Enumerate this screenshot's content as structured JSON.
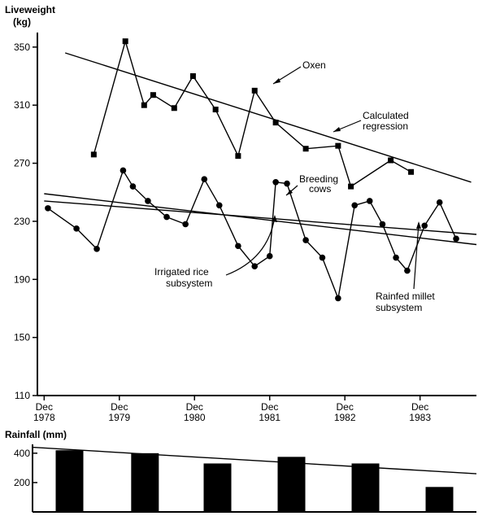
{
  "chart_data": [
    {
      "type": "line",
      "ylabel": "Liveweight",
      "yunit": "(kg)",
      "ylim": [
        110,
        360
      ],
      "yticks": [
        "110",
        "150",
        "190",
        "230",
        "270",
        "310",
        "350"
      ],
      "xticks": [
        {
          "label": "Dec",
          "year": "1978",
          "x": 1978.92
        },
        {
          "label": "Dec",
          "year": "1979",
          "x": 1979.92
        },
        {
          "label": "Dec",
          "year": "1980",
          "x": 1980.92
        },
        {
          "label": "Dec",
          "year": "1981",
          "x": 1981.92
        },
        {
          "label": "Dec",
          "year": "1982",
          "x": 1982.92
        },
        {
          "label": "Dec",
          "year": "1983",
          "x": 1983.92
        }
      ],
      "xlim": [
        1978.83,
        1984.67
      ],
      "grid": false,
      "series": [
        {
          "name": "Oxen",
          "marker": "square",
          "points": [
            [
              1979.58,
              276
            ],
            [
              1980.0,
              354
            ],
            [
              1980.25,
              310
            ],
            [
              1980.37,
              317
            ],
            [
              1980.65,
              308
            ],
            [
              1980.9,
              330
            ],
            [
              1981.2,
              307
            ],
            [
              1981.5,
              275
            ],
            [
              1981.72,
              320
            ],
            [
              1982.0,
              298
            ],
            [
              1982.4,
              280
            ],
            [
              1982.83,
              282
            ],
            [
              1983.0,
              254
            ],
            [
              1983.53,
              272
            ],
            [
              1983.8,
              264
            ]
          ]
        },
        {
          "name": "Breeding cows",
          "marker": "circle",
          "points": [
            [
              1978.97,
              239
            ],
            [
              1979.35,
              225
            ],
            [
              1979.62,
              211
            ],
            [
              1979.97,
              265
            ],
            [
              1980.1,
              254
            ],
            [
              1980.3,
              244
            ],
            [
              1980.55,
              233
            ],
            [
              1980.8,
              228
            ],
            [
              1981.05,
              259
            ],
            [
              1981.25,
              241
            ],
            [
              1981.5,
              213
            ],
            [
              1981.72,
              199
            ],
            [
              1981.92,
              206
            ],
            [
              1982.0,
              257
            ],
            [
              1982.15,
              256
            ],
            [
              1982.4,
              217
            ],
            [
              1982.62,
              205
            ],
            [
              1982.83,
              177
            ],
            [
              1983.05,
              241
            ],
            [
              1983.25,
              244
            ],
            [
              1983.42,
              228
            ],
            [
              1983.6,
              205
            ],
            [
              1983.75,
              196
            ],
            [
              1983.98,
              227
            ],
            [
              1984.18,
              243
            ],
            [
              1984.4,
              218
            ]
          ]
        },
        {
          "name": "Calculated regression",
          "style": "line",
          "points": [
            [
              1979.2,
              346
            ],
            [
              1984.6,
              257
            ]
          ]
        },
        {
          "name": "Irrigated rice subsystem",
          "style": "line",
          "points": [
            [
              1978.92,
              244
            ],
            [
              1984.67,
              221
            ]
          ]
        },
        {
          "name": "Rainfed millet subsystem",
          "style": "line",
          "points": [
            [
              1978.92,
              249
            ],
            [
              1984.67,
              214
            ]
          ]
        }
      ],
      "annotations": [
        {
          "text": "Oxen"
        },
        {
          "text": "Calculated",
          "text2": "regression"
        },
        {
          "text": "Breeding",
          "text2": "cows"
        },
        {
          "text": "Irrigated rice",
          "text2": "subsystem"
        },
        {
          "text": "Rainfed millet",
          "text2": "subsystem"
        }
      ]
    },
    {
      "type": "bar",
      "ylabel": "Rainfall (mm)",
      "ylim": [
        0,
        460
      ],
      "yticks": [
        "200",
        "400"
      ],
      "bars": [
        {
          "x": 1980.1,
          "value": 420
        },
        {
          "x": 1981.12,
          "value": 400
        },
        {
          "x": 1982.1,
          "value": 330
        },
        {
          "x": 1983.1,
          "value": 375
        },
        {
          "x": 1984.1,
          "value": 330
        },
        {
          "x": 1985.1,
          "value": 170
        }
      ],
      "trend": [
        [
          1978.92,
          440
        ],
        [
          1984.67,
          260
        ]
      ]
    }
  ]
}
